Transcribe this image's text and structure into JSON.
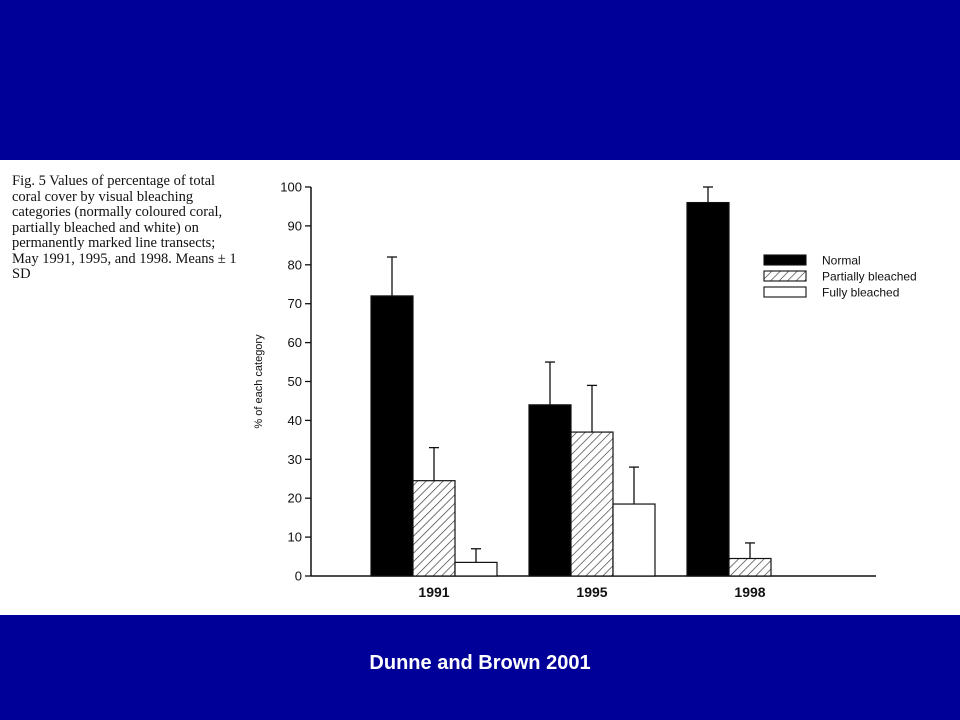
{
  "caption": "Fig. 5 Values of percentage of total coral cover by visual bleaching categories (normally coloured coral, partially bleached and white) on permanently marked line transects; May 1991, 1995, and 1998. Means ± 1 SD",
  "credit": "Dunne and Brown 2001",
  "chart_data": {
    "type": "bar",
    "title": "",
    "xlabel": "",
    "ylabel": "% of each category",
    "ylim": [
      0,
      100
    ],
    "yticks": [
      0,
      10,
      20,
      30,
      40,
      50,
      60,
      70,
      80,
      90,
      100
    ],
    "categories": [
      "1991",
      "1995",
      "1998"
    ],
    "series": [
      {
        "name": "Normal",
        "pattern": "solid-black",
        "values": [
          72,
          44,
          96
        ],
        "sd_upper": [
          82,
          55,
          100
        ]
      },
      {
        "name": "Partially bleached",
        "pattern": "hatched",
        "values": [
          24.5,
          37,
          4.5
        ],
        "sd_upper": [
          33,
          49,
          8.5
        ]
      },
      {
        "name": "Fully bleached",
        "pattern": "white",
        "values": [
          3.5,
          18.5,
          0
        ],
        "sd_upper": [
          7,
          28,
          0
        ]
      }
    ],
    "legend_position": "upper-right",
    "error_bars": "mean plus 1 SD (upper)",
    "grid": false
  }
}
